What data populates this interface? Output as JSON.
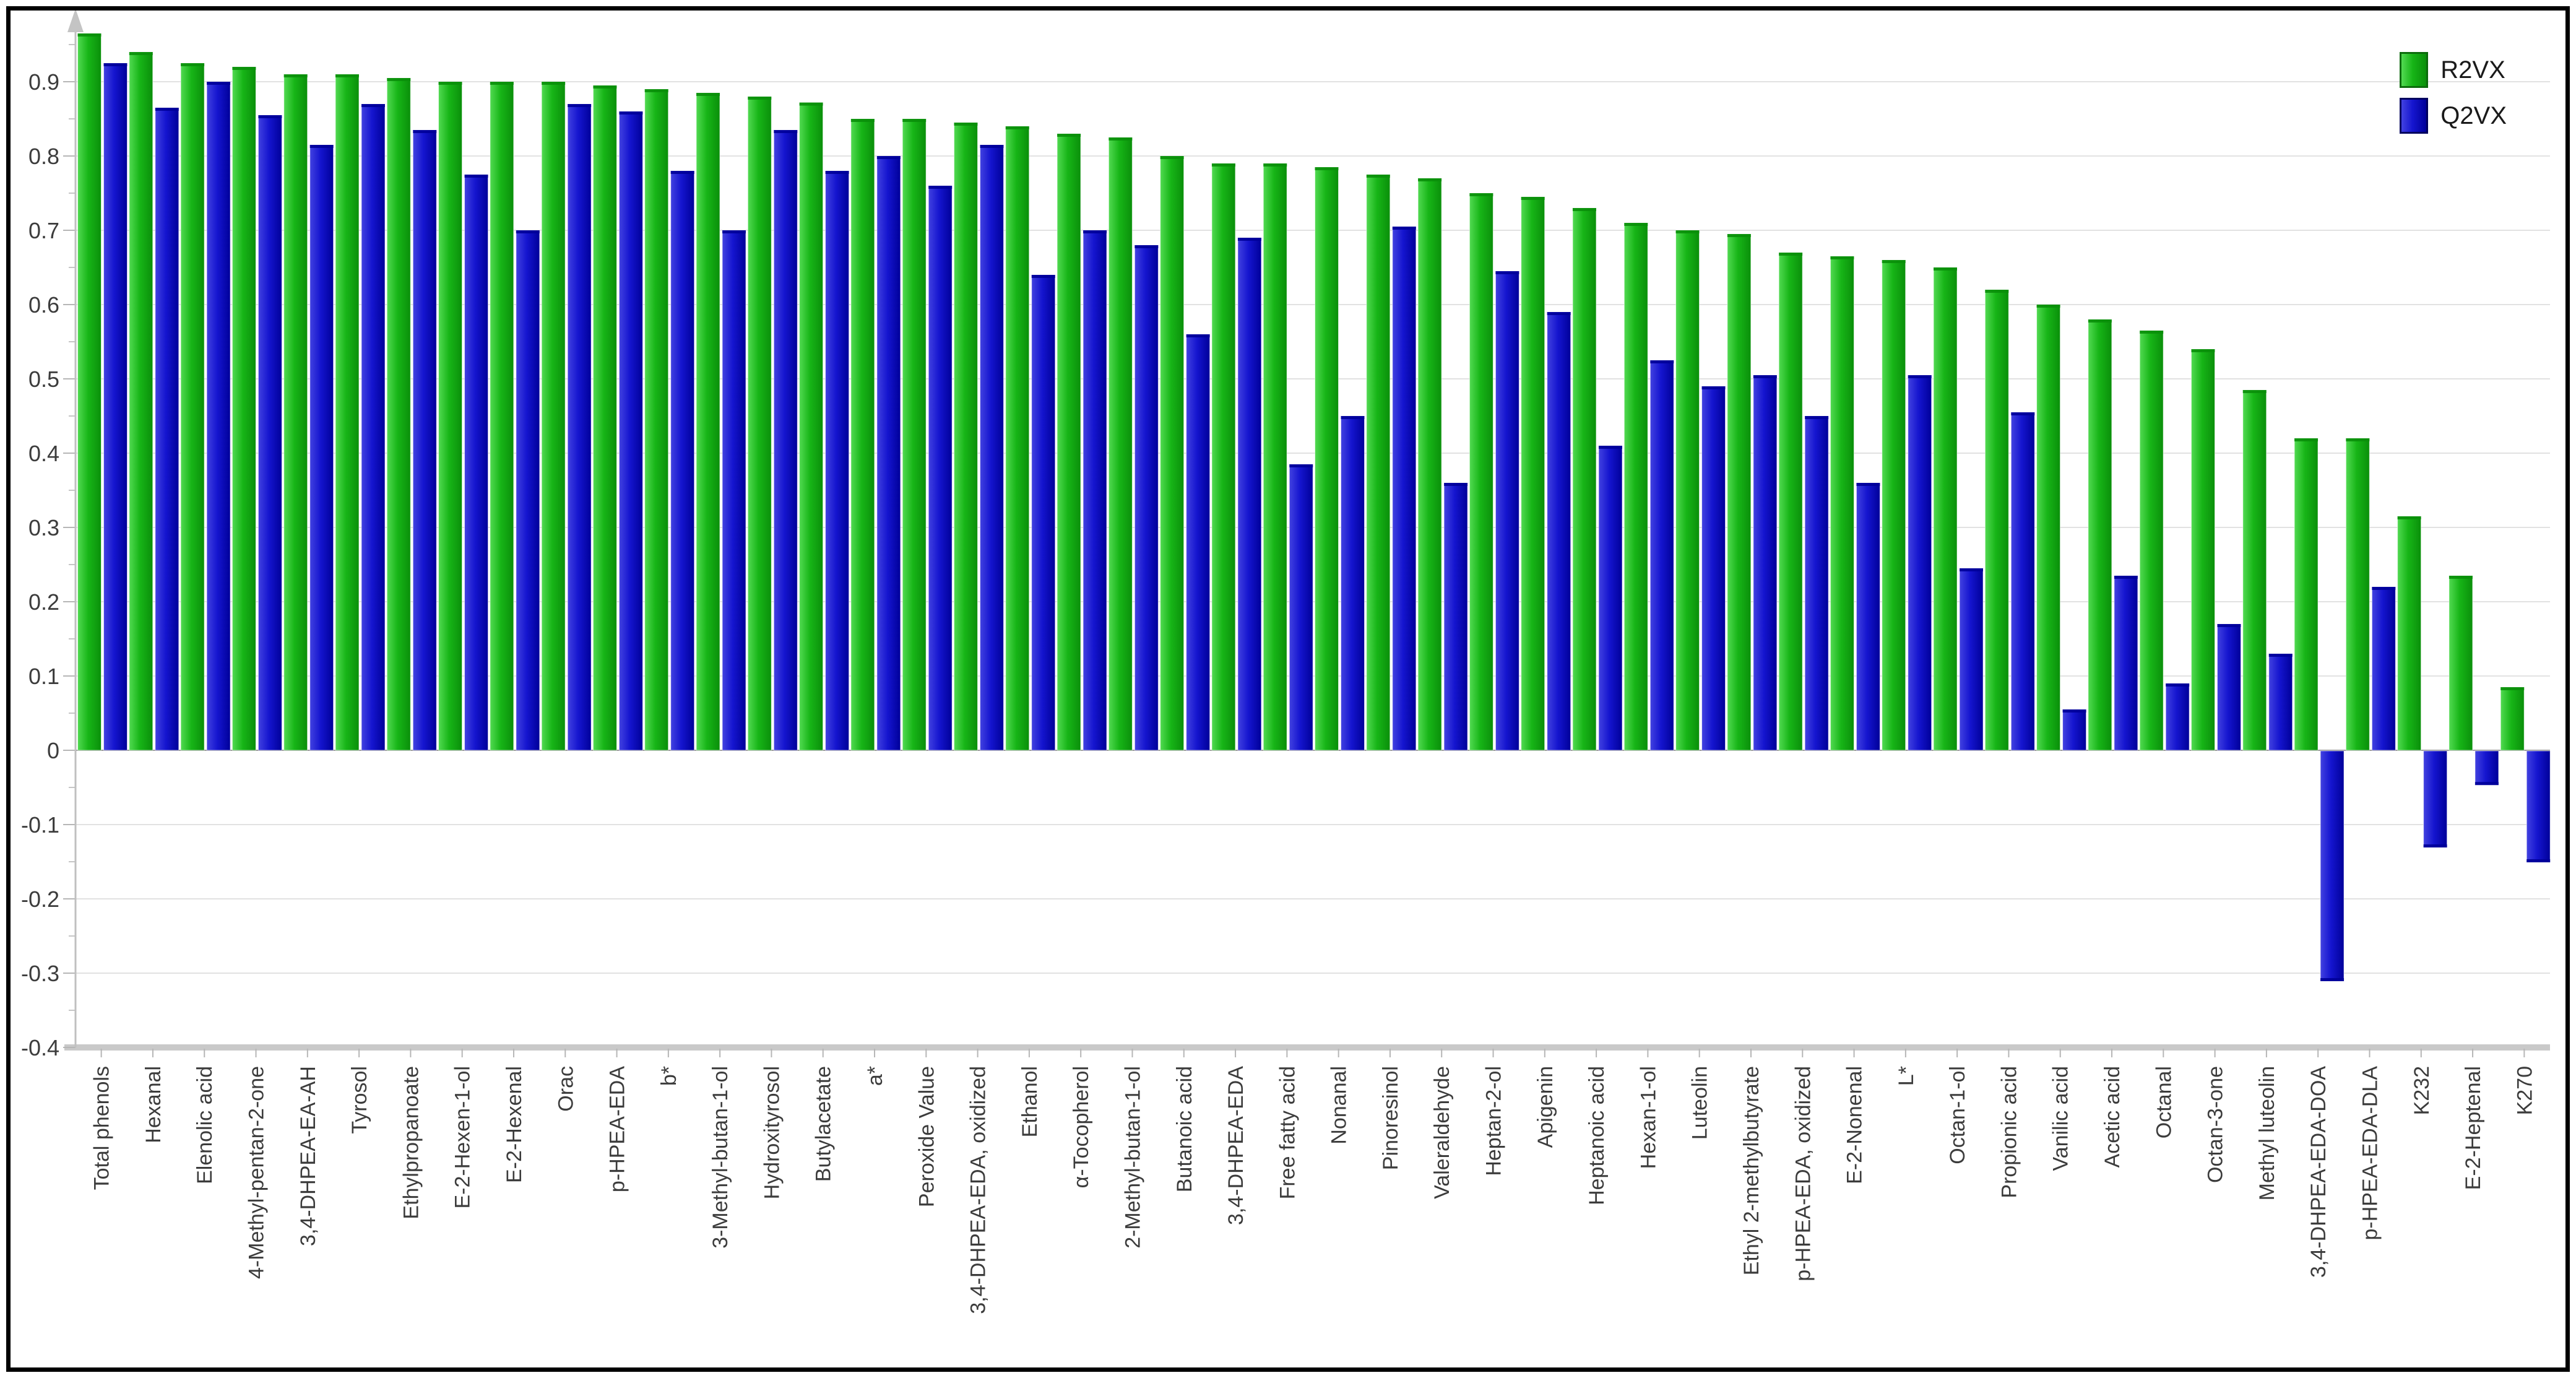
{
  "chart_data": {
    "type": "bar",
    "title": "",
    "xlabel": "",
    "ylabel": "",
    "ylim": [
      -0.4,
      1.0
    ],
    "grid": true,
    "legend_position": "top-right",
    "y_ticks": [
      0.9,
      0.8,
      0.7,
      0.6,
      0.5,
      0.4,
      0.3,
      0.2,
      0.1,
      0,
      -0.1,
      -0.2,
      -0.3,
      -0.4
    ],
    "y_tick_labels": [
      "0.9",
      "0.8",
      "0.7",
      "0.6",
      "0.5",
      "0.4",
      "0.3",
      "0.2",
      "0.1",
      "0",
      "-0.1",
      "-0.2",
      "-0.3",
      "-0.4"
    ],
    "categories": [
      "Total phenols",
      "Hexanal",
      "Elenolic acid",
      "4-Methyl-pentan-2-one",
      "3,4-DHPEA-EA-AH",
      "Tyrosol",
      "Ethylpropanoate",
      "E-2-Hexen-1-ol",
      "E-2-Hexenal",
      "Orac",
      "p-HPEA-EDA",
      "b*",
      "3-Methyl-butan-1-ol",
      "Hydroxityrosol",
      "Butylacetate",
      "a*",
      "Peroxide Value",
      "3,4-DHPEA-EDA, oxidized",
      "Ethanol",
      "α-Tocopherol",
      "2-Methyl-butan-1-ol",
      "Butanoic acid",
      "3,4-DHPEA-EDA",
      "Free fatty acid",
      "Nonanal",
      "Pinoresinol",
      "Valeraldehyde",
      "Heptan-2-ol",
      "Apigenin",
      "Heptanoic acid",
      "Hexan-1-ol",
      "Luteolin",
      "Ethyl 2-methylbutyrate",
      "p-HPEA-EDA, oxidized",
      "E-2-Nonenal",
      "L*",
      "Octan-1-ol",
      "Propionic acid",
      "Vanilic acid",
      "Acetic acid",
      "Octanal",
      "Octan-3-one",
      "Methyl luteolin",
      "3,4-DHPEA-EDA-DOA",
      "p-HPEA-EDA-DLA",
      "K232",
      "E-2-Heptenal",
      "K270"
    ],
    "series": [
      {
        "name": "R2VX",
        "color": "#17b517",
        "color_light": "#52da52",
        "color_dark": "#0a8f0a",
        "border": "#0c6b0c",
        "values": [
          0.965,
          0.94,
          0.925,
          0.92,
          0.91,
          0.91,
          0.905,
          0.9,
          0.9,
          0.9,
          0.895,
          0.89,
          0.885,
          0.88,
          0.872,
          0.85,
          0.85,
          0.845,
          0.84,
          0.83,
          0.825,
          0.8,
          0.79,
          0.79,
          0.785,
          0.775,
          0.77,
          0.75,
          0.745,
          0.73,
          0.71,
          0.7,
          0.695,
          0.67,
          0.665,
          0.66,
          0.65,
          0.62,
          0.6,
          0.58,
          0.565,
          0.54,
          0.485,
          0.42,
          0.42,
          0.315,
          0.235,
          0.085
        ]
      },
      {
        "name": "Q2VX",
        "color": "#1515cf",
        "color_light": "#4242e0",
        "color_dark": "#000099",
        "border": "#00005e",
        "values": [
          0.925,
          0.865,
          0.9,
          0.855,
          0.815,
          0.87,
          0.835,
          0.775,
          0.7,
          0.87,
          0.86,
          0.78,
          0.7,
          0.835,
          0.78,
          0.8,
          0.76,
          0.815,
          0.64,
          0.7,
          0.68,
          0.56,
          0.69,
          0.385,
          0.45,
          0.705,
          0.36,
          0.645,
          0.59,
          0.41,
          0.525,
          0.49,
          0.505,
          0.45,
          0.36,
          0.505,
          0.245,
          0.455,
          0.055,
          0.235,
          0.09,
          0.17,
          0.13,
          -0.31,
          0.22,
          -0.13,
          -0.046,
          -0.15
        ]
      }
    ]
  }
}
